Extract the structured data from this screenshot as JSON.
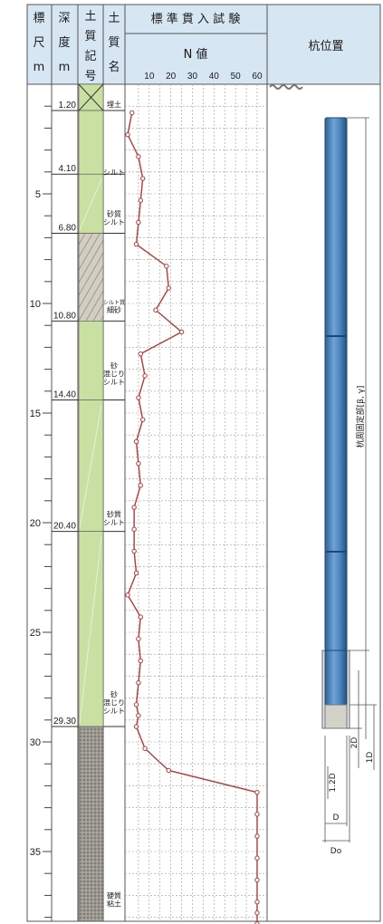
{
  "header": {
    "col_scale": [
      "標",
      "尺",
      "m"
    ],
    "col_depth": [
      "深",
      "度",
      "m"
    ],
    "col_symbol": [
      "土",
      "質",
      "記",
      "号"
    ],
    "col_soil": [
      "土",
      "質",
      "名"
    ],
    "spt_title": "標 準 貫 入 試 験",
    "spt_sub": "N 値",
    "n_ticks": [
      "10",
      "20",
      "30",
      "40",
      "50",
      "60"
    ],
    "pile_title": "杭位置"
  },
  "scale_labels": [
    "5",
    "10",
    "15",
    "20",
    "25",
    "30",
    "35"
  ],
  "depths": [
    "1.20",
    "4.10",
    "6.80",
    "10.80",
    "14.40",
    "20.40",
    "29.30"
  ],
  "soil_names": [
    {
      "lines": [
        "埋土"
      ]
    },
    {
      "lines": [
        "シルト"
      ]
    },
    {
      "lines": [
        "砂質",
        "シルト"
      ]
    },
    {
      "lines": [
        "シルト質",
        "細砂"
      ]
    },
    {
      "lines": [
        "砂",
        "混じり",
        "シルト"
      ]
    },
    {
      "lines": [
        "砂質",
        "シルト"
      ]
    },
    {
      "lines": [
        "砂",
        "混じり",
        "シルト"
      ]
    },
    {
      "lines": [
        "硬質",
        "粘土"
      ]
    }
  ],
  "layer_colors": {
    "fill": "#c9e0a2",
    "sand": "#d8d4ca",
    "clay": "#9d9a94",
    "header": "#d6e6f3",
    "pile": "#4d86bd"
  },
  "pile": {
    "label": "杭周固定部[β, γ]",
    "dims": [
      "1D",
      "2D",
      "1.2D",
      "D",
      "Do"
    ]
  },
  "chart_data": {
    "type": "line",
    "series": [
      {
        "x": [
          2,
          0,
          5,
          7,
          6,
          5,
          4,
          18,
          19,
          13,
          25,
          6,
          8,
          5,
          7,
          4,
          5,
          6,
          3,
          3,
          3,
          4,
          0,
          6,
          5,
          6,
          5,
          4,
          5,
          4,
          8,
          19,
          60,
          60,
          60,
          60,
          60,
          60,
          60,
          60
        ],
        "y": [
          1.3,
          2.3,
          3.3,
          4.3,
          5.3,
          6.3,
          7.3,
          8.3,
          9.3,
          10.3,
          11.3,
          12.3,
          13.3,
          14.3,
          15.3,
          16.3,
          17.3,
          18.3,
          19.3,
          20.3,
          21.3,
          22.3,
          23.3,
          24.3,
          25.3,
          26.3,
          27.3,
          28.3,
          28.8,
          29.3,
          30.3,
          31.3,
          32.3,
          33.3,
          34.3,
          35.3,
          36.3,
          37.3,
          37.8,
          38.3
        ]
      }
    ],
    "xlim": [
      0,
      60
    ],
    "ylim": [
      0,
      39
    ],
    "xticks": [
      10,
      20,
      30,
      40,
      50,
      60
    ],
    "grid": true
  }
}
